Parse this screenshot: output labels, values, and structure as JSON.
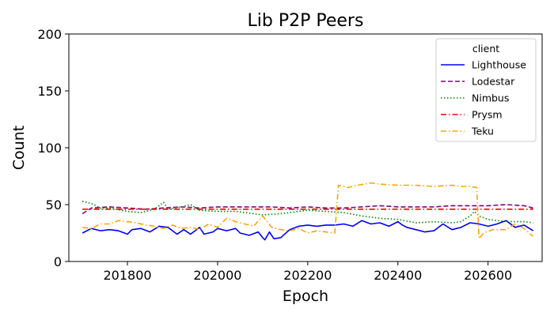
{
  "chart_data": {
    "type": "line",
    "title": "Lib P2P Peers",
    "xlabel": "Epoch",
    "ylabel": "Count",
    "xlim": [
      201670,
      202720
    ],
    "ylim": [
      0,
      200
    ],
    "x_ticks": [
      201800,
      202000,
      202200,
      202400,
      202600
    ],
    "y_ticks": [
      0,
      50,
      100,
      150,
      200
    ],
    "grid": false,
    "legend": {
      "title": "client",
      "position": "top-right"
    },
    "series": [
      {
        "name": "Lighthouse",
        "color": "#0000ff",
        "style": "solid",
        "points": [
          [
            201700,
            25
          ],
          [
            201720,
            29
          ],
          [
            201740,
            27
          ],
          [
            201760,
            28
          ],
          [
            201780,
            27
          ],
          [
            201800,
            24
          ],
          [
            201810,
            28
          ],
          [
            201830,
            29
          ],
          [
            201850,
            26
          ],
          [
            201870,
            31
          ],
          [
            201890,
            30
          ],
          [
            201900,
            27
          ],
          [
            201910,
            24
          ],
          [
            201925,
            28
          ],
          [
            201940,
            24
          ],
          [
            201960,
            30
          ],
          [
            201970,
            24
          ],
          [
            201990,
            26
          ],
          [
            202000,
            29
          ],
          [
            202020,
            27
          ],
          [
            202040,
            29
          ],
          [
            202050,
            25
          ],
          [
            202070,
            23
          ],
          [
            202090,
            26
          ],
          [
            202100,
            21
          ],
          [
            202105,
            19
          ],
          [
            202115,
            26
          ],
          [
            202125,
            20
          ],
          [
            202140,
            21
          ],
          [
            202160,
            28
          ],
          [
            202180,
            31
          ],
          [
            202200,
            32
          ],
          [
            202220,
            31
          ],
          [
            202240,
            32
          ],
          [
            202260,
            32
          ],
          [
            202280,
            33
          ],
          [
            202300,
            31
          ],
          [
            202320,
            36
          ],
          [
            202340,
            33
          ],
          [
            202360,
            34
          ],
          [
            202380,
            31
          ],
          [
            202400,
            35
          ],
          [
            202410,
            32
          ],
          [
            202420,
            30
          ],
          [
            202440,
            28
          ],
          [
            202460,
            26
          ],
          [
            202480,
            27
          ],
          [
            202500,
            33
          ],
          [
            202520,
            28
          ],
          [
            202540,
            30
          ],
          [
            202560,
            34
          ],
          [
            202580,
            33
          ],
          [
            202600,
            31
          ],
          [
            202620,
            33
          ],
          [
            202640,
            36
          ],
          [
            202660,
            30
          ],
          [
            202680,
            32
          ],
          [
            202700,
            27
          ]
        ]
      },
      {
        "name": "Lodestar",
        "color": "#800080",
        "style": "dashed",
        "points": [
          [
            201700,
            42
          ],
          [
            201720,
            47
          ],
          [
            201760,
            48
          ],
          [
            201800,
            47
          ],
          [
            201840,
            46
          ],
          [
            201880,
            47
          ],
          [
            201920,
            48
          ],
          [
            201960,
            47
          ],
          [
            202000,
            48
          ],
          [
            202040,
            48
          ],
          [
            202080,
            48
          ],
          [
            202120,
            48
          ],
          [
            202160,
            47
          ],
          [
            202200,
            48
          ],
          [
            202240,
            47
          ],
          [
            202280,
            47
          ],
          [
            202320,
            48
          ],
          [
            202360,
            49
          ],
          [
            202400,
            48
          ],
          [
            202440,
            48
          ],
          [
            202480,
            48
          ],
          [
            202520,
            49
          ],
          [
            202560,
            49
          ],
          [
            202600,
            49
          ],
          [
            202640,
            50
          ],
          [
            202680,
            49
          ],
          [
            202700,
            47
          ]
        ]
      },
      {
        "name": "Nimbus",
        "color": "#008000",
        "style": "dotted",
        "points": [
          [
            201700,
            53
          ],
          [
            201720,
            51
          ],
          [
            201740,
            47
          ],
          [
            201760,
            47
          ],
          [
            201800,
            44
          ],
          [
            201830,
            43
          ],
          [
            201860,
            46
          ],
          [
            201880,
            52
          ],
          [
            201890,
            46
          ],
          [
            201920,
            48
          ],
          [
            201940,
            50
          ],
          [
            201960,
            45
          ],
          [
            202000,
            44
          ],
          [
            202040,
            44
          ],
          [
            202080,
            42
          ],
          [
            202100,
            41
          ],
          [
            202140,
            42
          ],
          [
            202180,
            44
          ],
          [
            202200,
            45
          ],
          [
            202240,
            44
          ],
          [
            202280,
            43
          ],
          [
            202320,
            40
          ],
          [
            202360,
            38
          ],
          [
            202400,
            37
          ],
          [
            202440,
            34
          ],
          [
            202480,
            35
          ],
          [
            202520,
            34
          ],
          [
            202540,
            35
          ],
          [
            202560,
            40
          ],
          [
            202570,
            44
          ],
          [
            202580,
            40
          ],
          [
            202600,
            37
          ],
          [
            202640,
            35
          ],
          [
            202680,
            35
          ],
          [
            202700,
            34
          ]
        ]
      },
      {
        "name": "Prysm",
        "color": "#ff0000",
        "style": "dashdot",
        "points": [
          [
            201700,
            46
          ],
          [
            201800,
            46
          ],
          [
            201900,
            46
          ],
          [
            202000,
            46
          ],
          [
            202100,
            46
          ],
          [
            202200,
            46
          ],
          [
            202300,
            46
          ],
          [
            202400,
            46
          ],
          [
            202500,
            46
          ],
          [
            202600,
            46
          ],
          [
            202700,
            46
          ]
        ]
      },
      {
        "name": "Teku",
        "color": "#ffa500",
        "style": "dashdot",
        "points": [
          [
            201700,
            30
          ],
          [
            201720,
            29
          ],
          [
            201740,
            33
          ],
          [
            201760,
            33
          ],
          [
            201780,
            36
          ],
          [
            201800,
            35
          ],
          [
            201820,
            34
          ],
          [
            201840,
            32
          ],
          [
            201860,
            31
          ],
          [
            201880,
            29
          ],
          [
            201900,
            32
          ],
          [
            201920,
            29
          ],
          [
            201940,
            30
          ],
          [
            201960,
            28
          ],
          [
            201980,
            33
          ],
          [
            202000,
            30
          ],
          [
            202020,
            38
          ],
          [
            202040,
            35
          ],
          [
            202060,
            33
          ],
          [
            202080,
            31
          ],
          [
            202100,
            40
          ],
          [
            202120,
            30
          ],
          [
            202140,
            28
          ],
          [
            202160,
            27
          ],
          [
            202180,
            29
          ],
          [
            202200,
            25
          ],
          [
            202220,
            27
          ],
          [
            202240,
            26
          ],
          [
            202260,
            25
          ],
          [
            202268,
            67
          ],
          [
            202290,
            65
          ],
          [
            202310,
            67
          ],
          [
            202340,
            69
          ],
          [
            202360,
            68
          ],
          [
            202400,
            67
          ],
          [
            202440,
            67
          ],
          [
            202480,
            66
          ],
          [
            202520,
            67
          ],
          [
            202540,
            66
          ],
          [
            202560,
            66
          ],
          [
            202575,
            65
          ],
          [
            202580,
            20
          ],
          [
            202590,
            25
          ],
          [
            202610,
            28
          ],
          [
            202640,
            28
          ],
          [
            202660,
            33
          ],
          [
            202680,
            29
          ],
          [
            202700,
            22
          ]
        ]
      }
    ]
  }
}
